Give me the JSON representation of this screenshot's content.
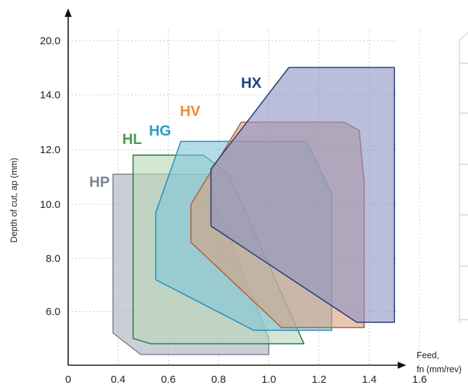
{
  "chart_data": {
    "type": "area",
    "ylabel": "Depth of cut, ap (mm)",
    "xlabel_line1": "Feed,",
    "xlabel_line2": "fn (mm/rev)",
    "origin_label": "0",
    "x_ticks": [
      "0.4",
      "0.6",
      "0.8",
      "1.0",
      "1.2",
      "1.4",
      "1.6"
    ],
    "y_ticks": [
      "6.0",
      "8.0",
      "10.0",
      "12.0",
      "14.0",
      "20.0"
    ],
    "grid": true,
    "series": [
      {
        "name": "HP",
        "color": "#7f8795",
        "fill": "#aab0ba",
        "points": [
          [
            0.38,
            5.2
          ],
          [
            0.38,
            11.1
          ],
          [
            0.76,
            11.1
          ],
          [
            0.8,
            9.8
          ],
          [
            1.0,
            5.0
          ],
          [
            1.0,
            4.4
          ],
          [
            0.49,
            4.4
          ],
          [
            0.38,
            5.2
          ]
        ]
      },
      {
        "name": "HL",
        "color": "#2e7d4f",
        "fill": "#b7d7b5",
        "points": [
          [
            0.46,
            5.0
          ],
          [
            0.46,
            11.8
          ],
          [
            0.74,
            11.8
          ],
          [
            0.84,
            11.1
          ],
          [
            1.14,
            4.8
          ],
          [
            0.53,
            4.8
          ],
          [
            0.46,
            5.0
          ]
        ]
      },
      {
        "name": "HG",
        "color": "#2a8fbd",
        "fill": "#7ec4d8",
        "points": [
          [
            0.55,
            7.2
          ],
          [
            0.55,
            9.7
          ],
          [
            0.65,
            12.3
          ],
          [
            1.15,
            12.3
          ],
          [
            1.25,
            10.4
          ],
          [
            1.25,
            5.3
          ],
          [
            0.94,
            5.3
          ],
          [
            0.55,
            7.2
          ]
        ]
      },
      {
        "name": "HV",
        "color": "#b0643a",
        "fill": "#d9a07e",
        "points": [
          [
            0.69,
            8.6
          ],
          [
            0.69,
            10.0
          ],
          [
            0.89,
            13.0
          ],
          [
            1.3,
            13.0
          ],
          [
            1.36,
            12.7
          ],
          [
            1.38,
            10.8
          ],
          [
            1.38,
            5.4
          ],
          [
            1.05,
            5.4
          ],
          [
            0.69,
            8.6
          ]
        ]
      },
      {
        "name": "HX",
        "color": "#2d3a78",
        "fill": "#8a93c3",
        "points": [
          [
            0.77,
            9.2
          ],
          [
            0.77,
            11.3
          ],
          [
            1.08,
            15.0
          ],
          [
            1.5,
            15.0
          ],
          [
            1.5,
            5.6
          ],
          [
            1.35,
            5.6
          ],
          [
            0.77,
            9.2
          ]
        ]
      }
    ],
    "label_colors": {
      "HP": "#7b8496",
      "HL": "#4a9a55",
      "HG": "#2f99c9",
      "HV": "#ef8a34",
      "HX": "#1f3f7a"
    }
  }
}
